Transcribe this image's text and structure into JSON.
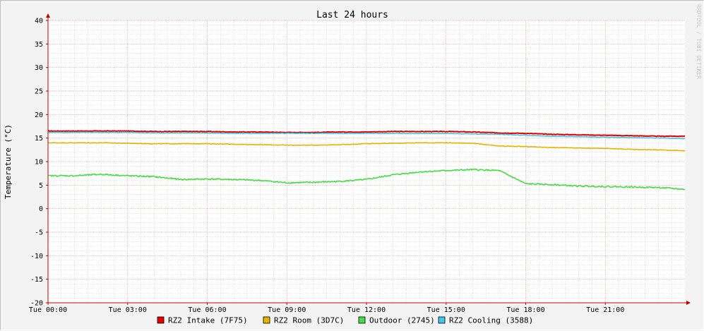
{
  "chart_data": {
    "type": "line",
    "title": "Last 24 hours",
    "ylabel": "Temperature (°C)",
    "xlabel": "",
    "watermark": "RRDTOOL / TOBI OETIKER",
    "ylim": [
      -20,
      40
    ],
    "yticks": [
      40,
      35,
      30,
      25,
      20,
      15,
      10,
      5,
      0,
      -5,
      -10,
      -15,
      -20
    ],
    "xlim_hours": [
      0,
      24
    ],
    "xticks": [
      {
        "hour": 0,
        "label": "Tue 00:00"
      },
      {
        "hour": 3,
        "label": "Tue 03:00"
      },
      {
        "hour": 6,
        "label": "Tue 06:00"
      },
      {
        "hour": 9,
        "label": "Tue 09:00"
      },
      {
        "hour": 12,
        "label": "Tue 12:00"
      },
      {
        "hour": 15,
        "label": "Tue 15:00"
      },
      {
        "hour": 18,
        "label": "Tue 18:00"
      },
      {
        "hour": 21,
        "label": "Tue 21:00"
      }
    ],
    "grid": true,
    "legend": "bottom",
    "x": [
      0,
      1,
      2,
      3,
      4,
      5,
      6,
      7,
      8,
      9,
      10,
      11,
      12,
      13,
      14,
      15,
      16,
      17,
      18,
      19,
      20,
      21,
      22,
      23,
      24
    ],
    "series": [
      {
        "name": "RZ2 Intake (7F75)",
        "color": "#e40000",
        "values": [
          16.5,
          16.5,
          16.5,
          16.5,
          16.4,
          16.4,
          16.4,
          16.3,
          16.3,
          16.2,
          16.2,
          16.3,
          16.3,
          16.4,
          16.4,
          16.4,
          16.3,
          16.1,
          16.0,
          15.8,
          15.7,
          15.6,
          15.5,
          15.4,
          15.4
        ]
      },
      {
        "name": "RZ2 Room (3D7C)",
        "color": "#e6b400",
        "values": [
          14.0,
          14.0,
          14.0,
          13.9,
          13.8,
          13.8,
          13.8,
          13.7,
          13.6,
          13.5,
          13.5,
          13.6,
          13.8,
          13.9,
          14.0,
          14.0,
          13.9,
          13.3,
          13.2,
          13.0,
          12.9,
          12.8,
          12.6,
          12.5,
          12.3
        ]
      },
      {
        "name": "Outdoor (2745)",
        "color": "#44dd44",
        "values": [
          7.0,
          7.0,
          7.3,
          7.0,
          6.8,
          6.2,
          6.3,
          6.2,
          6.0,
          5.5,
          5.6,
          5.8,
          6.2,
          7.2,
          7.8,
          8.1,
          8.3,
          8.1,
          5.3,
          5.1,
          4.8,
          4.7,
          4.6,
          4.5,
          4.1
        ]
      },
      {
        "name": "RZ2 Cooling (3588)",
        "color": "#3ec8ea",
        "values": [
          16.2,
          16.2,
          16.2,
          16.2,
          16.1,
          16.1,
          16.1,
          16.0,
          16.0,
          16.0,
          16.0,
          16.0,
          16.0,
          16.0,
          16.0,
          16.0,
          15.9,
          15.8,
          15.6,
          15.4,
          15.3,
          15.2,
          15.1,
          15.0,
          14.9
        ]
      }
    ]
  }
}
